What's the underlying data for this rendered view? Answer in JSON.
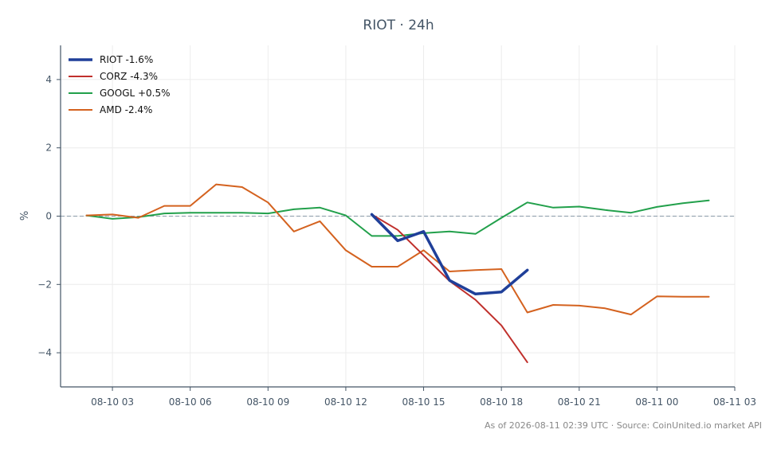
{
  "chart_data": {
    "type": "line",
    "title": "RIOT · 24h",
    "xlabel": "",
    "ylabel": "%",
    "x_tick_labels": [
      "08-10 03",
      "08-10 06",
      "08-10 09",
      "08-10 12",
      "08-10 15",
      "08-10 18",
      "08-10 21",
      "08-11 00",
      "08-11 03"
    ],
    "x_range": [
      "08-10 01:00",
      "08-11 03:00"
    ],
    "ylim": [
      -5,
      5
    ],
    "y_ticks": [
      4,
      2,
      0,
      -2,
      -4
    ],
    "y_tick_labels": [
      "4",
      "2",
      "0",
      "−2",
      "−4"
    ],
    "grid": true,
    "zero_line": true,
    "legend_position": "top-left",
    "series": [
      {
        "name": "RIOT -1.6%",
        "color": "#1f3f99",
        "points": [
          [
            "08-10 13:00",
            0.05
          ],
          [
            "08-10 14:00",
            -0.72
          ],
          [
            "08-10 15:00",
            -0.45
          ],
          [
            "08-10 16:00",
            -1.88
          ],
          [
            "08-10 17:00",
            -2.28
          ],
          [
            "08-10 18:00",
            -2.22
          ],
          [
            "08-10 19:00",
            -1.58
          ]
        ]
      },
      {
        "name": "CORZ -4.3%",
        "color": "#c0302c",
        "points": [
          [
            "08-10 13:00",
            0.05
          ],
          [
            "08-10 14:00",
            -0.4
          ],
          [
            "08-10 15:00",
            -1.15
          ],
          [
            "08-10 16:00",
            -1.9
          ],
          [
            "08-10 17:00",
            -2.45
          ],
          [
            "08-10 18:00",
            -3.2
          ],
          [
            "08-10 19:00",
            -4.28
          ]
        ]
      },
      {
        "name": "GOOGL +0.5%",
        "color": "#22a04b",
        "points": [
          [
            "08-10 02:00",
            0.02
          ],
          [
            "08-10 03:00",
            -0.08
          ],
          [
            "08-10 04:00",
            -0.03
          ],
          [
            "08-10 05:00",
            0.08
          ],
          [
            "08-10 06:00",
            0.1
          ],
          [
            "08-10 07:00",
            0.1
          ],
          [
            "08-10 08:00",
            0.1
          ],
          [
            "08-10 09:00",
            0.08
          ],
          [
            "08-10 10:00",
            0.2
          ],
          [
            "08-10 11:00",
            0.25
          ],
          [
            "08-10 12:00",
            0.02
          ],
          [
            "08-10 13:00",
            -0.58
          ],
          [
            "08-10 14:00",
            -0.58
          ],
          [
            "08-10 15:00",
            -0.5
          ],
          [
            "08-10 16:00",
            -0.45
          ],
          [
            "08-10 17:00",
            -0.52
          ],
          [
            "08-10 18:00",
            -0.05
          ],
          [
            "08-10 19:00",
            0.4
          ],
          [
            "08-10 20:00",
            0.25
          ],
          [
            "08-10 21:00",
            0.28
          ],
          [
            "08-10 22:00",
            0.18
          ],
          [
            "08-10 23:00",
            0.1
          ],
          [
            "08-11 00:00",
            0.27
          ],
          [
            "08-11 01:00",
            0.38
          ],
          [
            "08-11 02:00",
            0.46
          ]
        ]
      },
      {
        "name": "AMD -2.4%",
        "color": "#d4621f",
        "points": [
          [
            "08-10 02:00",
            0.02
          ],
          [
            "08-10 03:00",
            0.05
          ],
          [
            "08-10 04:00",
            -0.05
          ],
          [
            "08-10 05:00",
            0.3
          ],
          [
            "08-10 06:00",
            0.3
          ],
          [
            "08-10 07:00",
            0.93
          ],
          [
            "08-10 08:00",
            0.85
          ],
          [
            "08-10 09:00",
            0.4
          ],
          [
            "08-10 10:00",
            -0.45
          ],
          [
            "08-10 11:00",
            -0.15
          ],
          [
            "08-10 12:00",
            -1.0
          ],
          [
            "08-10 13:00",
            -1.48
          ],
          [
            "08-10 14:00",
            -1.48
          ],
          [
            "08-10 15:00",
            -1.0
          ],
          [
            "08-10 16:00",
            -1.62
          ],
          [
            "08-10 17:00",
            -1.58
          ],
          [
            "08-10 18:00",
            -1.55
          ],
          [
            "08-10 19:00",
            -2.82
          ],
          [
            "08-10 20:00",
            -2.6
          ],
          [
            "08-10 21:00",
            -2.62
          ],
          [
            "08-10 22:00",
            -2.7
          ],
          [
            "08-10 23:00",
            -2.88
          ],
          [
            "08-11 00:00",
            -2.35
          ],
          [
            "08-11 01:00",
            -2.36
          ],
          [
            "08-11 02:00",
            -2.36
          ]
        ]
      }
    ]
  },
  "footer": "As of 2026-08-11 02:39 UTC · Source: CoinUnited.io market API"
}
